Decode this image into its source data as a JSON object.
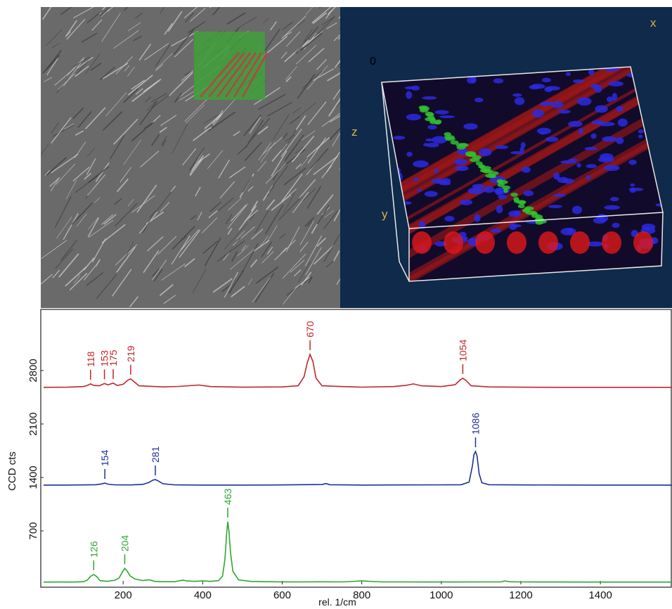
{
  "volume_axes": {
    "x": "x",
    "origin": "0",
    "z": "z",
    "y": "y"
  },
  "chart_data": {
    "type": "line",
    "x_label": "rel. 1/cm",
    "y_label": "CCD cts",
    "xlim": [
      0,
      1580
    ],
    "ylim": [
      0,
      3600
    ],
    "xticks": [
      200,
      400,
      600,
      800,
      1000,
      1200,
      1400
    ],
    "yticks": [
      700,
      1400,
      2100,
      2800
    ],
    "series": [
      {
        "color": "#c0262b",
        "x": [
          0,
          60,
          100,
          110,
          118,
          126,
          140,
          153,
          162,
          175,
          185,
          200,
          212,
          219,
          226,
          240,
          300,
          340,
          390,
          420,
          500,
          600,
          640,
          655,
          663,
          670,
          677,
          685,
          700,
          750,
          800,
          880,
          910,
          930,
          950,
          1000,
          1035,
          1048,
          1054,
          1062,
          1075,
          1120,
          1200,
          1300,
          1400,
          1500,
          1580
        ],
        "values": [
          2580,
          2582,
          2590,
          2605,
          2625,
          2605,
          2600,
          2630,
          2612,
          2635,
          2605,
          2620,
          2675,
          2690,
          2660,
          2600,
          2585,
          2592,
          2610,
          2590,
          2582,
          2585,
          2600,
          2720,
          2900,
          3012,
          2920,
          2700,
          2600,
          2590,
          2583,
          2590,
          2605,
          2625,
          2600,
          2590,
          2615,
          2680,
          2700,
          2670,
          2600,
          2585,
          2582,
          2580,
          2580,
          2580,
          2580
        ],
        "peaks": [
          118,
          153,
          175,
          219,
          670,
          1054
        ]
      },
      {
        "color": "#1c2f9a",
        "x": [
          0,
          50,
          100,
          130,
          146,
          154,
          162,
          180,
          220,
          250,
          265,
          275,
          281,
          288,
          300,
          330,
          400,
          500,
          600,
          700,
          710,
          720,
          800,
          900,
          1000,
          1050,
          1070,
          1078,
          1082,
          1086,
          1090,
          1095,
          1102,
          1120,
          1200,
          1300,
          1400,
          1500,
          1580
        ],
        "values": [
          1300,
          1300,
          1302,
          1305,
          1315,
          1326,
          1312,
          1303,
          1302,
          1310,
          1335,
          1365,
          1372,
          1355,
          1318,
          1303,
          1300,
          1300,
          1302,
          1308,
          1320,
          1305,
          1300,
          1302,
          1303,
          1305,
          1340,
          1550,
          1700,
          1740,
          1680,
          1450,
          1330,
          1305,
          1302,
          1301,
          1300,
          1300,
          1300
        ],
        "peaks": [
          154,
          281,
          1086
        ]
      },
      {
        "color": "#2fa62f",
        "x": [
          0,
          20,
          40,
          60,
          80,
          100,
          110,
          118,
          126,
          134,
          142,
          160,
          180,
          190,
          198,
          204,
          210,
          218,
          230,
          250,
          265,
          280,
          300,
          330,
          350,
          360,
          380,
          400,
          420,
          440,
          450,
          456,
          460,
          463,
          466,
          470,
          476,
          490,
          520,
          560,
          600,
          650,
          700,
          750,
          800,
          850,
          900,
          950,
          1000,
          1050,
          1100,
          1150,
          1160,
          1170,
          1200,
          1250,
          1300,
          1350,
          1400,
          1500,
          1580
        ],
        "values": [
          30,
          30,
          32,
          30,
          31,
          35,
          55,
          105,
          130,
          100,
          50,
          40,
          55,
          85,
          160,
          210,
          175,
          110,
          70,
          50,
          60,
          40,
          35,
          35,
          55,
          45,
          40,
          45,
          40,
          50,
          110,
          330,
          650,
          820,
          700,
          420,
          170,
          60,
          40,
          35,
          33,
          32,
          34,
          32,
          45,
          32,
          32,
          31,
          31,
          31,
          32,
          33,
          45,
          35,
          32,
          31,
          31,
          30,
          30,
          30,
          30
        ],
        "peaks": [
          126,
          204,
          463
        ]
      }
    ]
  }
}
